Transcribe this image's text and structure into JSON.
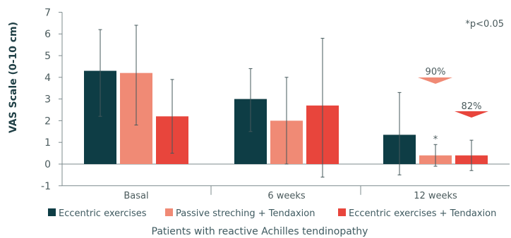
{
  "chart_data": {
    "type": "bar",
    "title": "",
    "xlabel": "Patients with reactive Achilles tendinopathy",
    "ylabel": "VAS Scale (0-10 cm)",
    "ylim": [
      -1,
      7
    ],
    "yticks": [
      "7",
      "6",
      "5",
      "4",
      "3",
      "2",
      "1",
      "0",
      "-1"
    ],
    "yticks_values": [
      7,
      6,
      5,
      4,
      3,
      2,
      1,
      0,
      -1
    ],
    "grid": false,
    "legend_position": "bottom",
    "categories": [
      "Basal",
      "6 weeks",
      "12 weeks"
    ],
    "series": [
      {
        "name": "Eccentric exercises",
        "color": "#0e3d45",
        "values": [
          4.3,
          3.0,
          1.35
        ],
        "error_low": [
          2.2,
          1.5,
          -0.5
        ],
        "error_high": [
          6.2,
          4.4,
          3.3
        ]
      },
      {
        "name": "Passive streching + Tendaxion",
        "color": "#f08a75",
        "values": [
          4.2,
          2.0,
          0.4
        ],
        "error_low": [
          1.8,
          0.0,
          -0.1
        ],
        "error_high": [
          6.4,
          4.0,
          0.9
        ]
      },
      {
        "name": "Eccentric exercises + Tendaxion",
        "color": "#e8453c",
        "values": [
          2.2,
          2.7,
          0.4
        ],
        "error_low": [
          0.5,
          -0.6,
          -0.3
        ],
        "error_high": [
          3.9,
          5.8,
          1.1
        ]
      }
    ],
    "annotations": {
      "significance_note": "*p<0.05",
      "asterisk": "*",
      "reduction_passive": "90%",
      "reduction_eccentric_tendaxion": "82%"
    }
  }
}
